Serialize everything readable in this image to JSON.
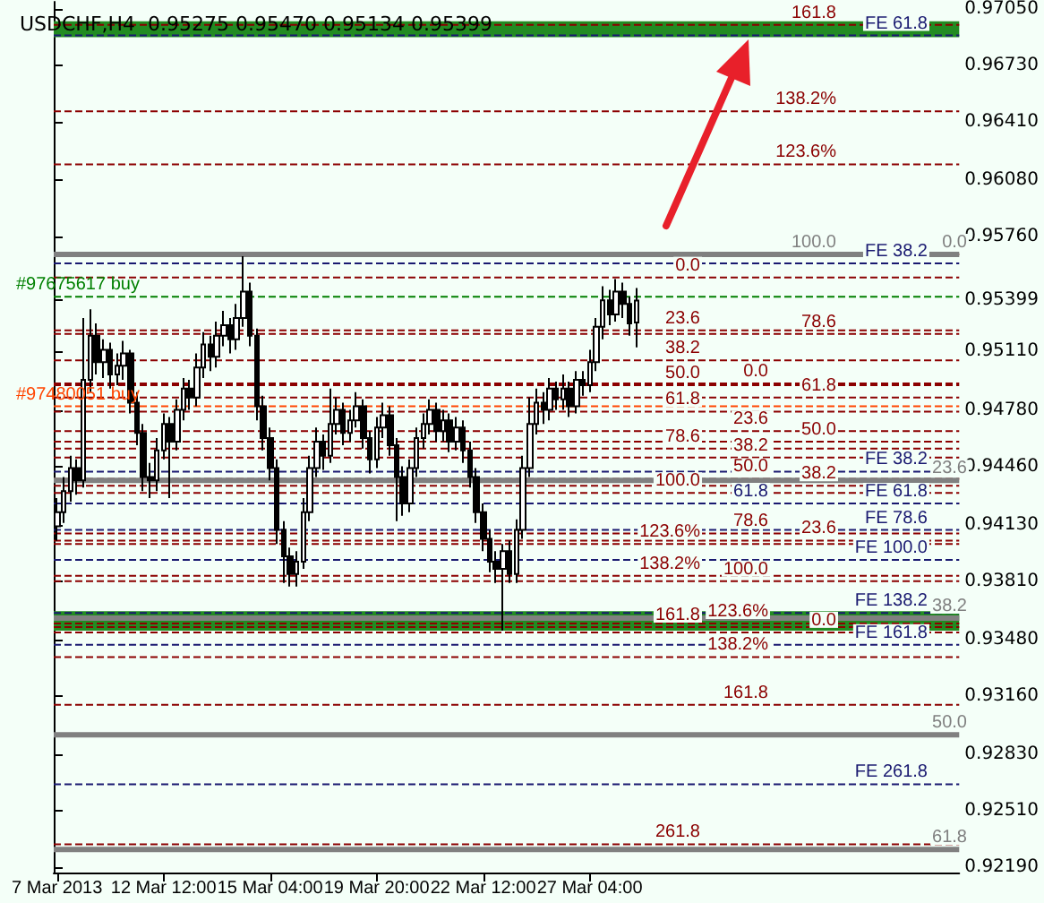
{
  "chart_data": {
    "type": "candlestick",
    "title": "USDCHF,H4  0.95275 0.95470 0.95134 0.95399",
    "color": "#000000",
    "categories": [
      "7 Mar 2013",
      null,
      null,
      null,
      null,
      null,
      null,
      null,
      null,
      null,
      null,
      null,
      null,
      null,
      null,
      null,
      "12 Mar 12:00",
      null,
      null,
      null,
      null,
      null,
      null,
      null,
      null,
      null,
      null,
      null,
      null,
      null,
      null,
      null,
      "15 Mar 04:00",
      null,
      null,
      null,
      null,
      null,
      null,
      null,
      null,
      null,
      null,
      null,
      null,
      null,
      null,
      null,
      "19 Mar 20:00",
      null,
      null,
      null,
      null,
      null,
      null,
      null,
      null,
      null,
      null,
      null,
      null,
      null,
      null,
      null,
      "22 Mar 12:00",
      null,
      null,
      null,
      null,
      null,
      null,
      null,
      null,
      null,
      null,
      null,
      null,
      null,
      null,
      null,
      "27 Mar 04:00",
      null,
      null,
      null,
      null,
      null,
      null,
      null,
      null,
      null,
      null,
      null,
      null,
      null,
      null,
      null,
      null,
      null,
      null,
      null,
      null,
      null,
      null,
      null,
      null,
      null,
      null,
      null,
      null,
      null,
      null,
      null,
      null,
      null,
      null,
      null,
      null,
      null,
      null,
      null,
      null,
      null,
      null,
      null,
      null,
      null,
      null,
      null,
      null,
      null,
      null,
      null,
      null,
      null,
      null,
      null
    ],
    "ohlc": [
      [
        0.9412,
        0.9428,
        0.9404,
        0.942
      ],
      [
        0.942,
        0.944,
        0.9414,
        0.9432
      ],
      [
        0.9432,
        0.9452,
        0.9426,
        0.9445
      ],
      [
        0.9445,
        0.945,
        0.943,
        0.9438
      ],
      [
        0.9438,
        0.953,
        0.9434,
        0.9495
      ],
      [
        0.9495,
        0.9535,
        0.9488,
        0.952
      ],
      [
        0.952,
        0.9527,
        0.9498,
        0.9505
      ],
      [
        0.9505,
        0.9518,
        0.9496,
        0.9512
      ],
      [
        0.9512,
        0.9516,
        0.949,
        0.9498
      ],
      [
        0.9498,
        0.951,
        0.9492,
        0.9503
      ],
      [
        0.9503,
        0.9517,
        0.9495,
        0.951
      ],
      [
        0.951,
        0.9512,
        0.9476,
        0.9482
      ],
      [
        0.9482,
        0.9488,
        0.9458,
        0.9465
      ],
      [
        0.9465,
        0.947,
        0.9432,
        0.944
      ],
      [
        0.944,
        0.9448,
        0.9428,
        0.9438
      ],
      [
        0.9438,
        0.9462,
        0.9432,
        0.9455
      ],
      [
        0.9455,
        0.9476,
        0.945,
        0.947
      ],
      [
        0.947,
        0.9474,
        0.9428,
        0.946
      ],
      [
        0.946,
        0.9484,
        0.9455,
        0.9478
      ],
      [
        0.9478,
        0.9496,
        0.9472,
        0.949
      ],
      [
        0.949,
        0.9495,
        0.9478,
        0.9485
      ],
      [
        0.9485,
        0.951,
        0.948,
        0.9502
      ],
      [
        0.9502,
        0.9522,
        0.9496,
        0.9515
      ],
      [
        0.9515,
        0.952,
        0.95,
        0.9508
      ],
      [
        0.9508,
        0.9528,
        0.9502,
        0.952
      ],
      [
        0.952,
        0.9534,
        0.9514,
        0.9526
      ],
      [
        0.9526,
        0.953,
        0.951,
        0.9518
      ],
      [
        0.9518,
        0.9538,
        0.9512,
        0.953
      ],
      [
        0.953,
        0.9565,
        0.9525,
        0.9545
      ],
      [
        0.9545,
        0.955,
        0.9514,
        0.952
      ],
      [
        0.952,
        0.9524,
        0.9472,
        0.948
      ],
      [
        0.948,
        0.9486,
        0.9455,
        0.9462
      ],
      [
        0.9462,
        0.9468,
        0.9438,
        0.9445
      ],
      [
        0.9445,
        0.945,
        0.9402,
        0.941
      ],
      [
        0.941,
        0.9415,
        0.938,
        0.9395
      ],
      [
        0.9395,
        0.94,
        0.9378,
        0.9385
      ],
      [
        0.9385,
        0.9398,
        0.9378,
        0.9392
      ],
      [
        0.9392,
        0.9428,
        0.9388,
        0.942
      ],
      [
        0.942,
        0.9452,
        0.9415,
        0.9445
      ],
      [
        0.9445,
        0.9468,
        0.944,
        0.946
      ],
      [
        0.946,
        0.9464,
        0.9444,
        0.9452
      ],
      [
        0.9452,
        0.949,
        0.9448,
        0.947
      ],
      [
        0.947,
        0.9485,
        0.9464,
        0.9478
      ],
      [
        0.9478,
        0.9482,
        0.9458,
        0.9465
      ],
      [
        0.9465,
        0.9478,
        0.946,
        0.9472
      ],
      [
        0.9472,
        0.9488,
        0.9468,
        0.948
      ],
      [
        0.948,
        0.9484,
        0.9456,
        0.9462
      ],
      [
        0.9462,
        0.9466,
        0.9442,
        0.945
      ],
      [
        0.945,
        0.9474,
        0.9445,
        0.9468
      ],
      [
        0.9468,
        0.9482,
        0.9462,
        0.9475
      ],
      [
        0.9475,
        0.948,
        0.9452,
        0.9458
      ],
      [
        0.9458,
        0.9462,
        0.9415,
        0.944
      ],
      [
        0.944,
        0.9446,
        0.9418,
        0.9425
      ],
      [
        0.9425,
        0.945,
        0.942,
        0.9445
      ],
      [
        0.9445,
        0.9468,
        0.944,
        0.9462
      ],
      [
        0.9462,
        0.9476,
        0.9456,
        0.947
      ],
      [
        0.947,
        0.9484,
        0.9464,
        0.9478
      ],
      [
        0.9478,
        0.9482,
        0.946,
        0.9466
      ],
      [
        0.9466,
        0.9478,
        0.946,
        0.9472
      ],
      [
        0.9472,
        0.9476,
        0.9454,
        0.946
      ],
      [
        0.946,
        0.9474,
        0.9455,
        0.9468
      ],
      [
        0.9468,
        0.9472,
        0.9448,
        0.9455
      ],
      [
        0.9455,
        0.946,
        0.9434,
        0.944
      ],
      [
        0.944,
        0.9445,
        0.9414,
        0.942
      ],
      [
        0.942,
        0.9425,
        0.9398,
        0.9405
      ],
      [
        0.9405,
        0.941,
        0.9386,
        0.9392
      ],
      [
        0.9392,
        0.9398,
        0.938,
        0.9388
      ],
      [
        0.9388,
        0.9402,
        0.9353,
        0.9398
      ],
      [
        0.9398,
        0.9404,
        0.938,
        0.9385
      ],
      [
        0.9385,
        0.9416,
        0.938,
        0.941
      ],
      [
        0.941,
        0.9452,
        0.9405,
        0.9445
      ],
      [
        0.9445,
        0.9485,
        0.944,
        0.947
      ],
      [
        0.947,
        0.949,
        0.9464,
        0.9482
      ],
      [
        0.9482,
        0.9488,
        0.947,
        0.9478
      ],
      [
        0.9478,
        0.9496,
        0.9472,
        0.949
      ],
      [
        0.949,
        0.9494,
        0.9478,
        0.9484
      ],
      [
        0.9484,
        0.9498,
        0.9478,
        0.949
      ],
      [
        0.949,
        0.9494,
        0.9474,
        0.948
      ],
      [
        0.948,
        0.95,
        0.9476,
        0.9495
      ],
      [
        0.9495,
        0.95,
        0.9486,
        0.9492
      ],
      [
        0.9492,
        0.9512,
        0.9488,
        0.9505
      ],
      [
        0.9505,
        0.953,
        0.95,
        0.9525
      ],
      [
        0.9525,
        0.9548,
        0.9518,
        0.954
      ],
      [
        0.954,
        0.9546,
        0.9526,
        0.9532
      ],
      [
        0.9532,
        0.9552,
        0.9528,
        0.9545
      ],
      [
        0.9545,
        0.955,
        0.953,
        0.9538
      ],
      [
        0.9538,
        0.9542,
        0.952,
        0.9527
      ],
      [
        0.95275,
        0.9547,
        0.95134,
        0.95399
      ],
      null,
      null,
      null,
      null,
      null,
      null,
      null,
      null,
      null,
      null,
      null,
      null,
      null,
      null,
      null,
      null,
      null,
      null,
      null,
      null,
      null,
      null,
      null,
      null,
      null,
      null,
      null,
      null,
      null,
      null,
      null,
      null,
      null,
      null,
      null,
      null,
      null,
      null,
      null,
      null,
      null,
      null,
      null,
      null,
      null,
      null,
      null,
      null
    ],
    "ylim": [
      0.9216,
      0.9709
    ],
    "yticks": [
      {
        "value": 0.9219,
        "label": "0.92190"
      },
      {
        "value": 0.9251,
        "label": "0.92510"
      },
      {
        "value": 0.9283,
        "label": "0.92830"
      },
      {
        "value": 0.9316,
        "label": "0.93160"
      },
      {
        "value": 0.9348,
        "label": "0.93480"
      },
      {
        "value": 0.9381,
        "label": "0.93810"
      },
      {
        "value": 0.9413,
        "label": "0.94130"
      },
      {
        "value": 0.9446,
        "label": "0.94460"
      },
      {
        "value": 0.9478,
        "label": "0.94780"
      },
      {
        "value": 0.9511,
        "label": "0.95110"
      },
      {
        "value": 0.95399,
        "label": "0.95399"
      },
      {
        "value": 0.9576,
        "label": "0.95760"
      },
      {
        "value": 0.9608,
        "label": "0.96080"
      },
      {
        "value": 0.9641,
        "label": "0.96410"
      },
      {
        "value": 0.9673,
        "label": "0.96730"
      },
      {
        "value": 0.9705,
        "label": "0.97050"
      }
    ],
    "bands": [
      {
        "axis": "y",
        "from": 0.9689,
        "to": 0.9698,
        "color": "#228b22"
      },
      {
        "axis": "y",
        "from": 0.9353,
        "to": 0.9364,
        "color": "#228b22"
      }
    ],
    "ref_lines": [
      {
        "axis": "y",
        "value": 0.9542,
        "label": "#97675617 buy",
        "color": "#008000",
        "line_style": "dashed"
      },
      {
        "axis": "y",
        "value": 0.948,
        "label": "#97480051 buy",
        "color": "#ff4500",
        "line_style": "dashed"
      },
      {
        "axis": "y",
        "value": 0.9696,
        "color": "#8b0000",
        "line_style": "dashed"
      },
      {
        "axis": "y",
        "value": 0.9647,
        "color": "#8b0000",
        "line_style": "dashed"
      },
      {
        "axis": "y",
        "value": 0.9617,
        "color": "#8b0000",
        "line_style": "dashed"
      },
      {
        "axis": "y",
        "value": 0.9566,
        "color": "#8b0000",
        "line_style": "dashed"
      },
      {
        "axis": "y",
        "value": 0.9521,
        "color": "#8b0000",
        "line_style": "dashed"
      },
      {
        "axis": "y",
        "value": 0.9485,
        "color": "#8b0000",
        "line_style": "dashed"
      },
      {
        "axis": "y",
        "value": 0.946,
        "color": "#8b0000",
        "line_style": "dashed"
      },
      {
        "axis": "y",
        "value": 0.9435,
        "color": "#8b0000",
        "line_style": "dashed"
      },
      {
        "axis": "y",
        "value": 0.9404,
        "color": "#8b0000",
        "line_style": "dashed"
      },
      {
        "axis": "y",
        "value": 0.9352,
        "color": "#8b0000",
        "line_style": "dashed"
      },
      {
        "axis": "y",
        "value": 0.9553,
        "color": "#8b0000",
        "line_style": "dashed"
      },
      {
        "axis": "y",
        "value": 0.9523,
        "color": "#8b0000",
        "line_style": "dashed"
      },
      {
        "axis": "y",
        "value": 0.9506,
        "color": "#8b0000",
        "line_style": "dashed"
      },
      {
        "axis": "y",
        "value": 0.9492,
        "color": "#8b0000",
        "line_style": "dashed"
      },
      {
        "axis": "y",
        "value": 0.9477,
        "color": "#8b0000",
        "line_style": "dashed"
      },
      {
        "axis": "y",
        "value": 0.9456,
        "color": "#8b0000",
        "line_style": "dashed"
      },
      {
        "axis": "y",
        "value": 0.9431,
        "color": "#8b0000",
        "line_style": "dashed"
      },
      {
        "axis": "y",
        "value": 0.9402,
        "color": "#8b0000",
        "line_style": "dashed"
      },
      {
        "axis": "y",
        "value": 0.9384,
        "color": "#8b0000",
        "line_style": "dashed"
      },
      {
        "axis": "y",
        "value": 0.9355,
        "color": "#8b0000",
        "line_style": "dashed"
      },
      {
        "axis": "y",
        "value": 0.9232,
        "color": "#8b0000",
        "line_style": "dashed"
      },
      {
        "axis": "y",
        "value": 0.9493,
        "color": "#8b0000",
        "line_style": "dashed"
      },
      {
        "axis": "y",
        "value": 0.9466,
        "color": "#8b0000",
        "line_style": "dashed"
      },
      {
        "axis": "y",
        "value": 0.9451,
        "color": "#8b0000",
        "line_style": "dashed"
      },
      {
        "axis": "y",
        "value": 0.9439,
        "color": "#8b0000",
        "line_style": "dashed"
      },
      {
        "axis": "y",
        "value": 0.9425,
        "color": "#8b0000",
        "line_style": "dashed"
      },
      {
        "axis": "y",
        "value": 0.9408,
        "color": "#8b0000",
        "line_style": "dashed"
      },
      {
        "axis": "y",
        "value": 0.9381,
        "color": "#8b0000",
        "line_style": "dashed"
      },
      {
        "axis": "y",
        "value": 0.9357,
        "color": "#8b0000",
        "line_style": "dashed"
      },
      {
        "axis": "y",
        "value": 0.9338,
        "color": "#8b0000",
        "line_style": "dashed"
      },
      {
        "axis": "y",
        "value": 0.9311,
        "color": "#8b0000",
        "line_style": "dashed"
      },
      {
        "axis": "y",
        "value": 0.969,
        "label": "FE 61.8",
        "color": "#191970",
        "line_style": "dashed"
      },
      {
        "axis": "y",
        "value": 0.9561,
        "label": "FE 38.2",
        "color": "#191970",
        "line_style": "dashed"
      },
      {
        "axis": "y",
        "value": 0.9443,
        "label": "FE 38.2",
        "color": "#191970",
        "line_style": "dashed"
      },
      {
        "axis": "y",
        "value": 0.9425,
        "label": "FE 61.8",
        "color": "#191970",
        "line_style": "dashed"
      },
      {
        "axis": "y",
        "value": 0.941,
        "label": "FE 78.6",
        "color": "#191970",
        "line_style": "dashed"
      },
      {
        "axis": "y",
        "value": 0.9393,
        "label": "FE 100.0",
        "color": "#191970",
        "line_style": "dashed"
      },
      {
        "axis": "y",
        "value": 0.9363,
        "label": "FE 138.2",
        "color": "#191970",
        "line_style": "dashed"
      },
      {
        "axis": "y",
        "value": 0.9345,
        "label": "FE 161.8",
        "color": "#191970",
        "line_style": "dashed"
      },
      {
        "axis": "y",
        "value": 0.9266,
        "label": "FE 261.8",
        "color": "#191970",
        "line_style": "dashed"
      },
      {
        "axis": "y",
        "value": 0.9566,
        "color": "#808080",
        "line_style": "solid"
      },
      {
        "axis": "y",
        "value": 0.9438,
        "color": "#808080",
        "line_style": "solid"
      },
      {
        "axis": "y",
        "value": 0.936,
        "color": "#808080",
        "line_style": "solid"
      },
      {
        "axis": "y",
        "value": 0.9294,
        "color": "#808080",
        "line_style": "solid"
      },
      {
        "axis": "y",
        "value": 0.9229,
        "color": "#808080",
        "line_style": "solid"
      }
    ],
    "annotations": [
      {
        "text": "161.8",
        "y": 0.9696
      },
      {
        "text": "138.2%",
        "y": 0.9647
      },
      {
        "text": "123.6%",
        "y": 0.9617
      },
      {
        "text": "100.0",
        "y": 0.9566
      },
      {
        "text": "78.6",
        "y": 0.9521
      },
      {
        "text": "61.8",
        "y": 0.9485
      },
      {
        "text": "50.0",
        "y": 0.946
      },
      {
        "text": "38.2",
        "y": 0.9435
      },
      {
        "text": "23.6",
        "y": 0.9404
      },
      {
        "text": "0.0",
        "y": 0.9352
      },
      {
        "text": "0.0",
        "y": 0.9553
      },
      {
        "text": "23.6",
        "y": 0.9523
      },
      {
        "text": "38.2",
        "y": 0.9506
      },
      {
        "text": "50.0",
        "y": 0.9492
      },
      {
        "text": "61.8",
        "y": 0.9477
      },
      {
        "text": "78.6",
        "y": 0.9456
      },
      {
        "text": "100.0",
        "y": 0.9431
      },
      {
        "text": "123.6%",
        "y": 0.9402
      },
      {
        "text": "138.2%",
        "y": 0.9384
      },
      {
        "text": "161.8",
        "y": 0.9355
      },
      {
        "text": "261.8",
        "y": 0.9232
      },
      {
        "text": "0.0",
        "y": 0.9493
      },
      {
        "text": "23.6",
        "y": 0.9466
      },
      {
        "text": "38.2",
        "y": 0.9451
      },
      {
        "text": "50.0",
        "y": 0.9439
      },
      {
        "text": "61.8",
        "y": 0.9425
      },
      {
        "text": "78.6",
        "y": 0.9408
      },
      {
        "text": "100.0",
        "y": 0.9381
      },
      {
        "text": "123.6%",
        "y": 0.9357
      },
      {
        "text": "138.2%",
        "y": 0.9338
      },
      {
        "text": "161.8",
        "y": 0.9311
      },
      {
        "text": "0.0",
        "y": 0.9566
      },
      {
        "text": "23.6",
        "y": 0.9438
      },
      {
        "text": "38.2",
        "y": 0.936
      },
      {
        "text": "50.0",
        "y": 0.9294
      },
      {
        "text": "61.8",
        "y": 0.9229
      }
    ],
    "grid": false
  }
}
